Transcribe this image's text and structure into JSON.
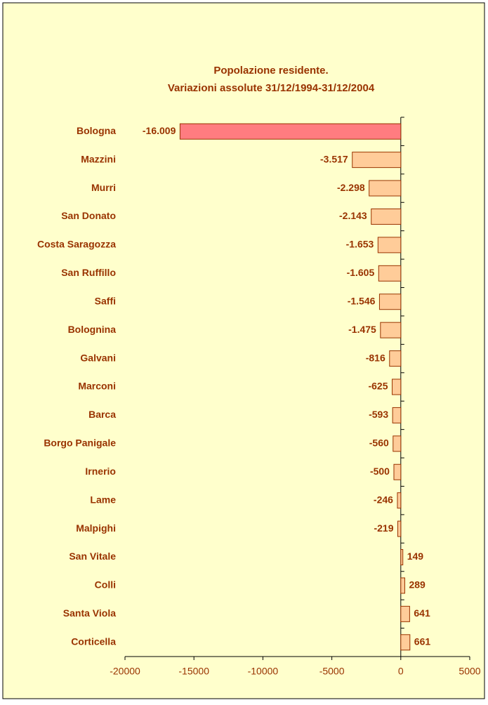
{
  "chart_data": {
    "type": "bar",
    "orientation": "horizontal",
    "title": "Popolazione residente.",
    "subtitle": "Variazioni assolute 31/12/1994-31/12/2004",
    "categories": [
      "Bologna",
      "Mazzini",
      "Murri",
      "San Donato",
      "Costa Saragozza",
      "San Ruffillo",
      "Saffi",
      "Bolognina",
      "Galvani",
      "Marconi",
      "Barca",
      "Borgo Panigale",
      "Irnerio",
      "Lame",
      "Malpighi",
      "San Vitale",
      "Colli",
      "Santa Viola",
      "Corticella"
    ],
    "values": [
      -16009,
      -3517,
      -2298,
      -2143,
      -1653,
      -1605,
      -1546,
      -1475,
      -816,
      -625,
      -593,
      -560,
      -500,
      -246,
      -219,
      149,
      289,
      641,
      661
    ],
    "value_labels": [
      "-16.009",
      "-3.517",
      "-2.298",
      "-2.143",
      "-1.653",
      "-1.605",
      "-1.546",
      "-1.475",
      "-816",
      "-625",
      "-593",
      "-560",
      "-500",
      "-246",
      "-219",
      "149",
      "289",
      "641",
      "661"
    ],
    "colors": [
      "#FF7C80",
      "#FFCC99",
      "#FFCC99",
      "#FFCC99",
      "#FFCC99",
      "#FFCC99",
      "#FFCC99",
      "#FFCC99",
      "#FFCC99",
      "#FFCC99",
      "#FFCC99",
      "#FFCC99",
      "#FFCC99",
      "#FFCC99",
      "#FFCC99",
      "#FFCC99",
      "#FFCC99",
      "#FFCC99",
      "#FFCC99"
    ],
    "xlim": [
      -20000,
      5000
    ],
    "xticks": [
      -20000,
      -15000,
      -10000,
      -5000,
      0,
      5000
    ],
    "grid": false
  }
}
